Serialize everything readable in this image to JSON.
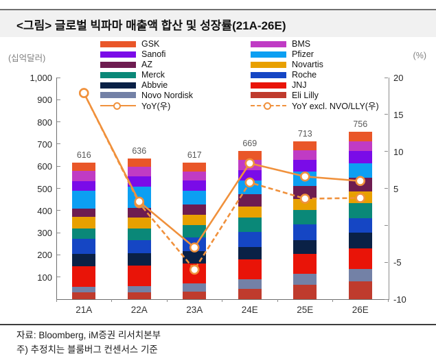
{
  "title": "<그림> 글로벌 빅파마 매출액 합산 및 성장률(21A-26E)",
  "left_axis": {
    "unit": "(십억달러)",
    "ticks": [
      {
        "value": 1000,
        "label": "1,000"
      },
      {
        "value": 900,
        "label": "900"
      },
      {
        "value": 800,
        "label": "800"
      },
      {
        "value": 700,
        "label": "700"
      },
      {
        "value": 600,
        "label": "600"
      },
      {
        "value": 500,
        "label": "500"
      },
      {
        "value": 400,
        "label": "400"
      },
      {
        "value": 300,
        "label": "300"
      },
      {
        "value": 200,
        "label": "200"
      },
      {
        "value": 100,
        "label": "100"
      }
    ]
  },
  "right_axis": {
    "unit": "(%)",
    "ticks": [
      {
        "value": 20,
        "label": "20"
      },
      {
        "value": 15,
        "label": "15"
      },
      {
        "value": 10,
        "label": "10"
      },
      {
        "value": 5,
        "label": "5"
      },
      {
        "value": 0,
        "label": ""
      },
      {
        "value": -5,
        "label": "-5"
      },
      {
        "value": -10,
        "label": "-10"
      }
    ]
  },
  "legend": {
    "left": [
      {
        "type": "box",
        "label": "GSK",
        "color": "#E95628"
      },
      {
        "type": "box",
        "label": "Sanofi",
        "color": "#7A0BE8"
      },
      {
        "type": "box",
        "label": "AZ",
        "color": "#6E1C50"
      },
      {
        "type": "box",
        "label": "Merck",
        "color": "#0A8878"
      },
      {
        "type": "box",
        "label": "Abbvie",
        "color": "#0A2146"
      },
      {
        "type": "box",
        "label": "Novo Nordisk",
        "color": "#7381A6"
      },
      {
        "type": "line",
        "label": "YoY(우)",
        "color": "#F0913C"
      }
    ],
    "right": [
      {
        "type": "box",
        "label": "BMS",
        "color": "#C03BC4"
      },
      {
        "type": "box",
        "label": "Pfizer",
        "color": "#0C9FF2"
      },
      {
        "type": "box",
        "label": "Novartis",
        "color": "#E8A000"
      },
      {
        "type": "box",
        "label": "Roche",
        "color": "#1546C4"
      },
      {
        "type": "box",
        "label": "JNJ",
        "color": "#E91408"
      },
      {
        "type": "box",
        "label": "Eli Lilly",
        "color": "#BF3B2D"
      },
      {
        "type": "dashed-line",
        "label": "YoY excl. NVO/LLY(우)",
        "color": "#F0913C"
      }
    ]
  },
  "chart_data": {
    "type": "bar",
    "subtype": "stacked-bars-with-right-axis-lines",
    "title": "글로벌 빅파마 매출액 합산 및 성장률(21A-26E)",
    "categories": [
      "21A",
      "22A",
      "23A",
      "24E",
      "25E",
      "26E"
    ],
    "totals": [
      616,
      636,
      617,
      669,
      713,
      756
    ],
    "left_ylim": [
      0,
      1000
    ],
    "right_ylim": [
      -10,
      20
    ],
    "grid": false,
    "legend_position": "top",
    "series": [
      {
        "name": "Eli Lilly",
        "color": "#BF3B2D",
        "values": [
          30,
          31,
          35,
          47,
          65,
          79
        ]
      },
      {
        "name": "Novo Nordisk",
        "color": "#7381A6",
        "values": [
          25,
          27,
          35,
          44,
          50,
          57
        ]
      },
      {
        "name": "JNJ",
        "color": "#E91408",
        "values": [
          93,
          94,
          92,
          89,
          88,
          94
        ]
      },
      {
        "name": "Abbvie",
        "color": "#0A2146",
        "values": [
          56,
          54,
          55,
          56,
          64,
          69
        ]
      },
      {
        "name": "Roche",
        "color": "#1546C4",
        "values": [
          69,
          60,
          61,
          68,
          70,
          66
        ]
      },
      {
        "name": "Merck",
        "color": "#0A8878",
        "values": [
          47,
          53,
          57,
          64,
          66,
          68
        ]
      },
      {
        "name": "Novartis",
        "color": "#E8A000",
        "values": [
          52,
          48,
          47,
          51,
          48,
          52
        ]
      },
      {
        "name": "AZ",
        "color": "#6E1C50",
        "values": [
          37,
          46,
          45,
          54,
          60,
          63
        ]
      },
      {
        "name": "Pfizer",
        "color": "#0C9FF2",
        "values": [
          79,
          95,
          63,
          64,
          66,
          65
        ]
      },
      {
        "name": "Sanofi",
        "color": "#7A0BE8",
        "values": [
          45,
          46,
          45,
          46,
          50,
          55
        ]
      },
      {
        "name": "BMS",
        "color": "#C03BC4",
        "values": [
          46,
          44,
          41,
          47,
          46,
          44
        ]
      },
      {
        "name": "GSK",
        "color": "#E95628",
        "values": [
          37,
          38,
          41,
          39,
          40,
          44
        ]
      }
    ],
    "lines": [
      {
        "name": "YoY excl. NVO/LLY(우)",
        "style": "dashed",
        "axis": "right",
        "color": "#F0913C",
        "values": [
          17.9,
          3.0,
          -6.0,
          5.8,
          3.6,
          3.7
        ]
      },
      {
        "name": "YoY(우)",
        "style": "solid",
        "axis": "right",
        "color": "#F0913C",
        "values": [
          17.9,
          3.2,
          -3.0,
          8.4,
          6.6,
          6.0
        ]
      }
    ]
  },
  "footer": {
    "source": "자료: Bloomberg, iM증권 리서치본부",
    "note": "주) 추정치는 블룸버그 컨센서스 기준"
  }
}
